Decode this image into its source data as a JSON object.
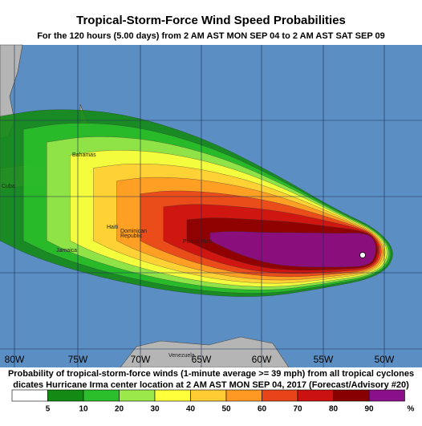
{
  "header": {
    "title": "Tropical-Storm-Force Wind Speed Probabilities",
    "subtitle": "For the 120 hours (5.00 days) from 2 AM AST MON SEP 04 to 2 AM AST SAT SEP 09"
  },
  "map": {
    "longitude_labels": [
      "80W",
      "75W",
      "70W",
      "65W",
      "60W",
      "55W",
      "50W"
    ],
    "places": [
      "Bahamas",
      "Cuba",
      "Haiti",
      "Dominican",
      "Republic",
      "Jamaica",
      "Puerto Rico",
      "Venezuela"
    ]
  },
  "caption": [
    "Probability of tropical-storm-force winds (1-minute average >= 39 mph) from all tropical cyclones",
    "dicates Hurricane Irma center location at 2 AM AST MON SEP 04, 2017 (Forecast/Advisory #20)"
  ],
  "legend": {
    "ticks": [
      5,
      10,
      20,
      30,
      40,
      50,
      60,
      70,
      80,
      90
    ],
    "unit": "%",
    "colors": [
      "#ffffff",
      "#138a13",
      "#2bbf2b",
      "#9be84a",
      "#ffff3c",
      "#ffcc33",
      "#ff9922",
      "#e8441a",
      "#cc1111",
      "#880000",
      "#8a108a"
    ]
  }
}
